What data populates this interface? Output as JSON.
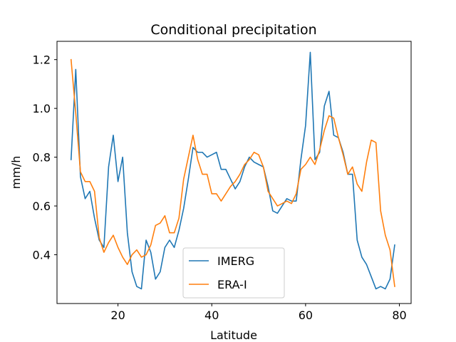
{
  "chart_data": {
    "type": "line",
    "title": "Conditional precipitation",
    "xlabel": "Latitude",
    "ylabel": "mm/h",
    "xlim": [
      7.0,
      82.5
    ],
    "ylim": [
      0.2,
      1.275
    ],
    "xticks": [
      20,
      40,
      60,
      80
    ],
    "yticks": [
      0.4,
      0.6,
      0.8,
      1.0,
      1.2
    ],
    "xtick_labels": [
      "20",
      "40",
      "60",
      "80"
    ],
    "ytick_labels": [
      "0.4",
      "0.6",
      "0.8",
      "1.0",
      "1.2"
    ],
    "grid": false,
    "legend_position": "lower center",
    "colors": {
      "IMERG": "#1f77b4",
      "ERA-I": "#ff7f0e"
    },
    "x": [
      10,
      11,
      12,
      13,
      14,
      15,
      16,
      17,
      18,
      19,
      20,
      21,
      22,
      23,
      24,
      25,
      26,
      27,
      28,
      29,
      30,
      31,
      32,
      33,
      34,
      35,
      36,
      37,
      38,
      39,
      40,
      41,
      42,
      43,
      44,
      45,
      46,
      47,
      48,
      49,
      50,
      51,
      52,
      53,
      54,
      55,
      56,
      57,
      58,
      59,
      60,
      61,
      62,
      63,
      64,
      65,
      66,
      67,
      68,
      69,
      70,
      71,
      72,
      73,
      74,
      75,
      76,
      77,
      78,
      79
    ],
    "series": [
      {
        "name": "IMERG",
        "values": [
          0.79,
          1.16,
          0.72,
          0.63,
          0.66,
          0.55,
          0.46,
          0.43,
          0.76,
          0.89,
          0.7,
          0.8,
          0.49,
          0.33,
          0.27,
          0.26,
          0.46,
          0.41,
          0.3,
          0.33,
          0.43,
          0.46,
          0.43,
          0.5,
          0.59,
          0.71,
          0.84,
          0.82,
          0.82,
          0.8,
          0.81,
          0.82,
          0.75,
          0.75,
          0.71,
          0.67,
          0.7,
          0.76,
          0.8,
          0.78,
          0.77,
          0.76,
          0.68,
          0.58,
          0.57,
          0.6,
          0.63,
          0.62,
          0.62,
          0.79,
          0.93,
          1.23,
          0.79,
          0.82,
          1.01,
          1.07,
          0.89,
          0.88,
          0.82,
          0.73,
          0.73,
          0.46,
          0.39,
          0.36,
          0.31,
          0.26,
          0.27,
          0.26,
          0.3,
          0.44
        ]
      },
      {
        "name": "ERA-I",
        "values": [
          1.2,
          0.98,
          0.74,
          0.7,
          0.7,
          0.66,
          0.47,
          0.41,
          0.45,
          0.48,
          0.43,
          0.39,
          0.36,
          0.4,
          0.42,
          0.39,
          0.4,
          0.44,
          0.52,
          0.53,
          0.56,
          0.49,
          0.49,
          0.55,
          0.71,
          0.8,
          0.89,
          0.79,
          0.73,
          0.73,
          0.65,
          0.65,
          0.62,
          0.65,
          0.68,
          0.7,
          0.73,
          0.77,
          0.79,
          0.82,
          0.81,
          0.76,
          0.66,
          0.63,
          0.6,
          0.61,
          0.62,
          0.61,
          0.65,
          0.75,
          0.77,
          0.8,
          0.77,
          0.83,
          0.91,
          0.97,
          0.96,
          0.88,
          0.81,
          0.73,
          0.76,
          0.69,
          0.66,
          0.78,
          0.87,
          0.86,
          0.58,
          0.48,
          0.42,
          0.27
        ]
      }
    ]
  }
}
